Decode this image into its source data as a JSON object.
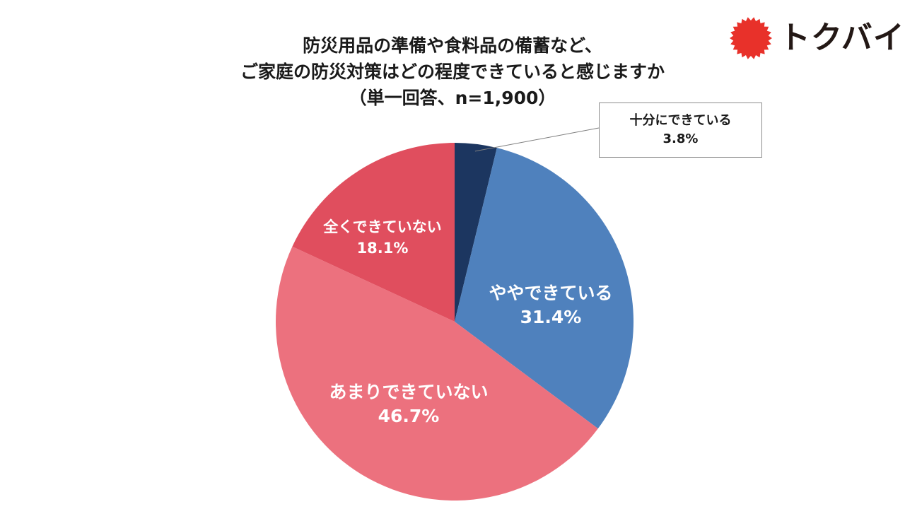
{
  "title": {
    "line1": "防災用品の準備や食料品の備蓄など、",
    "line2": "ご家庭の防災対策はどの程度できていると感じますか",
    "line3": "（単一回答、n=1,900）"
  },
  "logo": {
    "text": "トクバイ",
    "icon": "red-sunburst-icon",
    "icon_color": "#e8312a"
  },
  "chart_data": {
    "type": "pie",
    "title": "防災用品の準備や食料品の備蓄など、ご家庭の防災対策はどの程度できていると感じますか（単一回答、n=1,900）",
    "start": "12 o'clock",
    "direction": "clockwise",
    "slices": [
      {
        "label": "十分にできている",
        "value": 3.8,
        "value_label": "3.8%",
        "color": "#1c3660"
      },
      {
        "label": "ややできている",
        "value": 31.4,
        "value_label": "31.4%",
        "color": "#4f81bd"
      },
      {
        "label": "あまりできていない",
        "value": 46.7,
        "value_label": "46.7%",
        "color": "#ec717e"
      },
      {
        "label": "全くできていない",
        "value": 18.1,
        "value_label": "18.1%",
        "color": "#e04e5e"
      }
    ]
  }
}
